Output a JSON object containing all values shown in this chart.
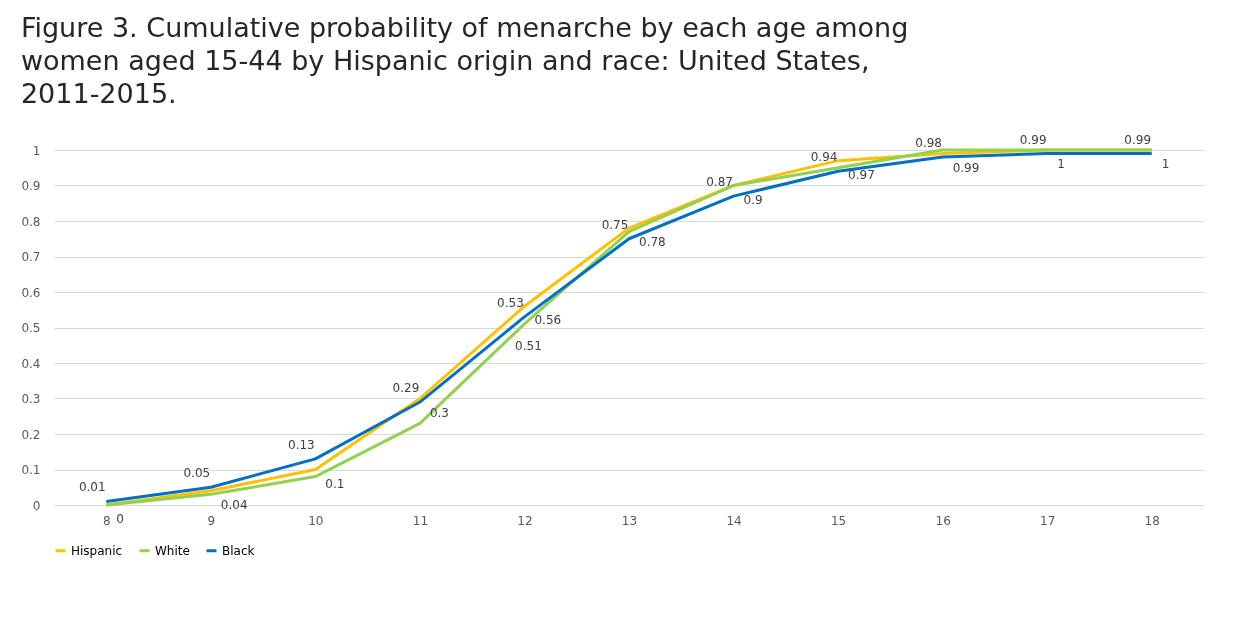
{
  "chart_data": {
    "type": "line",
    "title": "Figure 3. Cumulative probability of menarche by each age among women aged 15-44 by Hispanic origin and race: United States, 2011-2015.",
    "categories": [
      "8",
      "9",
      "10",
      "11",
      "12",
      "13",
      "14",
      "15",
      "16",
      "17",
      "18"
    ],
    "series": [
      {
        "name": "Hispanic",
        "color": "#ffc000",
        "values": [
          0,
          0.04,
          0.1,
          0.3,
          0.56,
          0.78,
          0.9,
          0.97,
          0.99,
          1,
          1
        ],
        "value_labels": [
          "0",
          "0.04",
          "0.1",
          "0.3",
          "0.56",
          "0.78",
          "0.9",
          "0.97",
          "0.99",
          "1",
          "1"
        ]
      },
      {
        "name": "White",
        "color": "#92d050",
        "values": [
          0,
          0.03,
          0.08,
          0.23,
          0.51,
          0.77,
          0.9,
          0.95,
          1,
          1,
          1
        ],
        "value_labels": [
          null,
          null,
          null,
          null,
          "0.51",
          null,
          null,
          null,
          null,
          null,
          null
        ]
      },
      {
        "name": "Black",
        "color": "#0070c0",
        "values": [
          0.01,
          0.05,
          0.13,
          0.29,
          0.53,
          0.75,
          0.87,
          0.94,
          0.98,
          0.99,
          0.99
        ],
        "value_labels": [
          "0.01",
          "0.05",
          "0.13",
          "0.29",
          "0.53",
          "0.75",
          "0.87",
          "0.94",
          "0.98",
          "0.99",
          "0.99"
        ]
      }
    ],
    "ylim": [
      0,
      1
    ],
    "yticks": [
      0,
      0.1,
      0.2,
      0.3,
      0.4,
      0.5,
      0.6,
      0.7,
      0.8,
      0.9,
      1
    ],
    "grid": "y",
    "legend": "bottom",
    "marker": "none",
    "line_style": "solid"
  }
}
